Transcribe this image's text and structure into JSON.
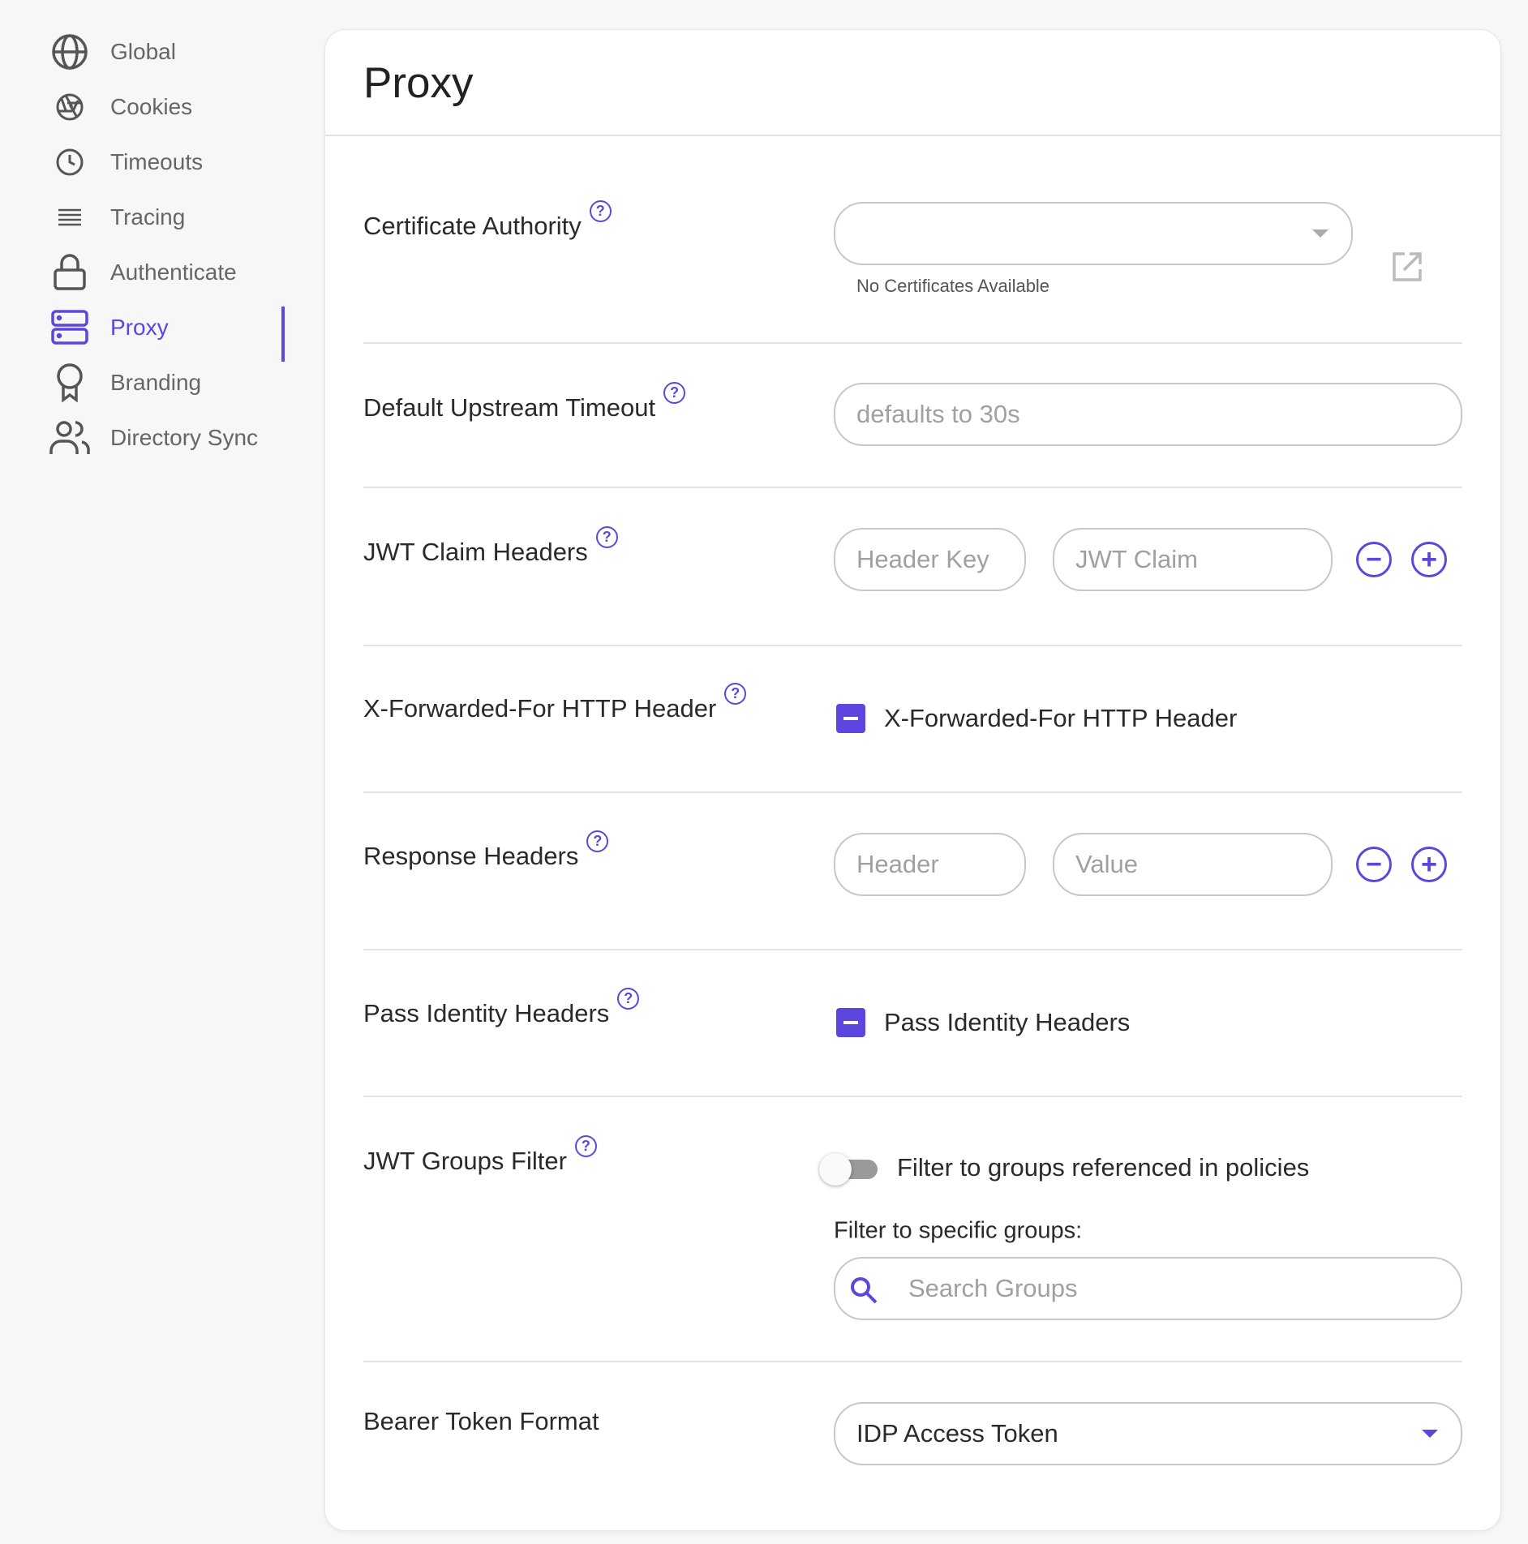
{
  "sidebar": {
    "items": [
      {
        "label": "Global",
        "icon": "globe-icon"
      },
      {
        "label": "Cookies",
        "icon": "aperture-icon"
      },
      {
        "label": "Timeouts",
        "icon": "clock-icon"
      },
      {
        "label": "Tracing",
        "icon": "lines-icon"
      },
      {
        "label": "Authenticate",
        "icon": "lock-icon"
      },
      {
        "label": "Proxy",
        "icon": "server-icon",
        "active": true
      },
      {
        "label": "Branding",
        "icon": "award-icon"
      },
      {
        "label": "Directory Sync",
        "icon": "users-icon"
      }
    ]
  },
  "accent": "#5b47e0",
  "page": {
    "title": "Proxy"
  },
  "form": {
    "certificate_authority": {
      "label": "Certificate Authority",
      "value": "",
      "helper": "No Certificates Available"
    },
    "upstream_timeout": {
      "label": "Default Upstream Timeout",
      "placeholder": "defaults to 30s"
    },
    "jwt_claim_headers": {
      "label": "JWT Claim Headers",
      "key_placeholder": "Header Key",
      "claim_placeholder": "JWT Claim"
    },
    "xff": {
      "label": "X-Forwarded-For HTTP Header",
      "checkbox_label": "X-Forwarded-For HTTP Header",
      "state": "indeterminate"
    },
    "response_headers": {
      "label": "Response Headers",
      "key_placeholder": "Header",
      "value_placeholder": "Value"
    },
    "pass_identity": {
      "label": "Pass Identity Headers",
      "checkbox_label": "Pass Identity Headers",
      "state": "indeterminate"
    },
    "jwt_groups": {
      "label": "JWT Groups Filter",
      "toggle_label": "Filter to groups referenced in policies",
      "toggle_on": false,
      "specific_label": "Filter to specific groups:",
      "search_placeholder": "Search Groups"
    },
    "bearer": {
      "label": "Bearer Token Format",
      "value": "IDP Access Token"
    }
  }
}
